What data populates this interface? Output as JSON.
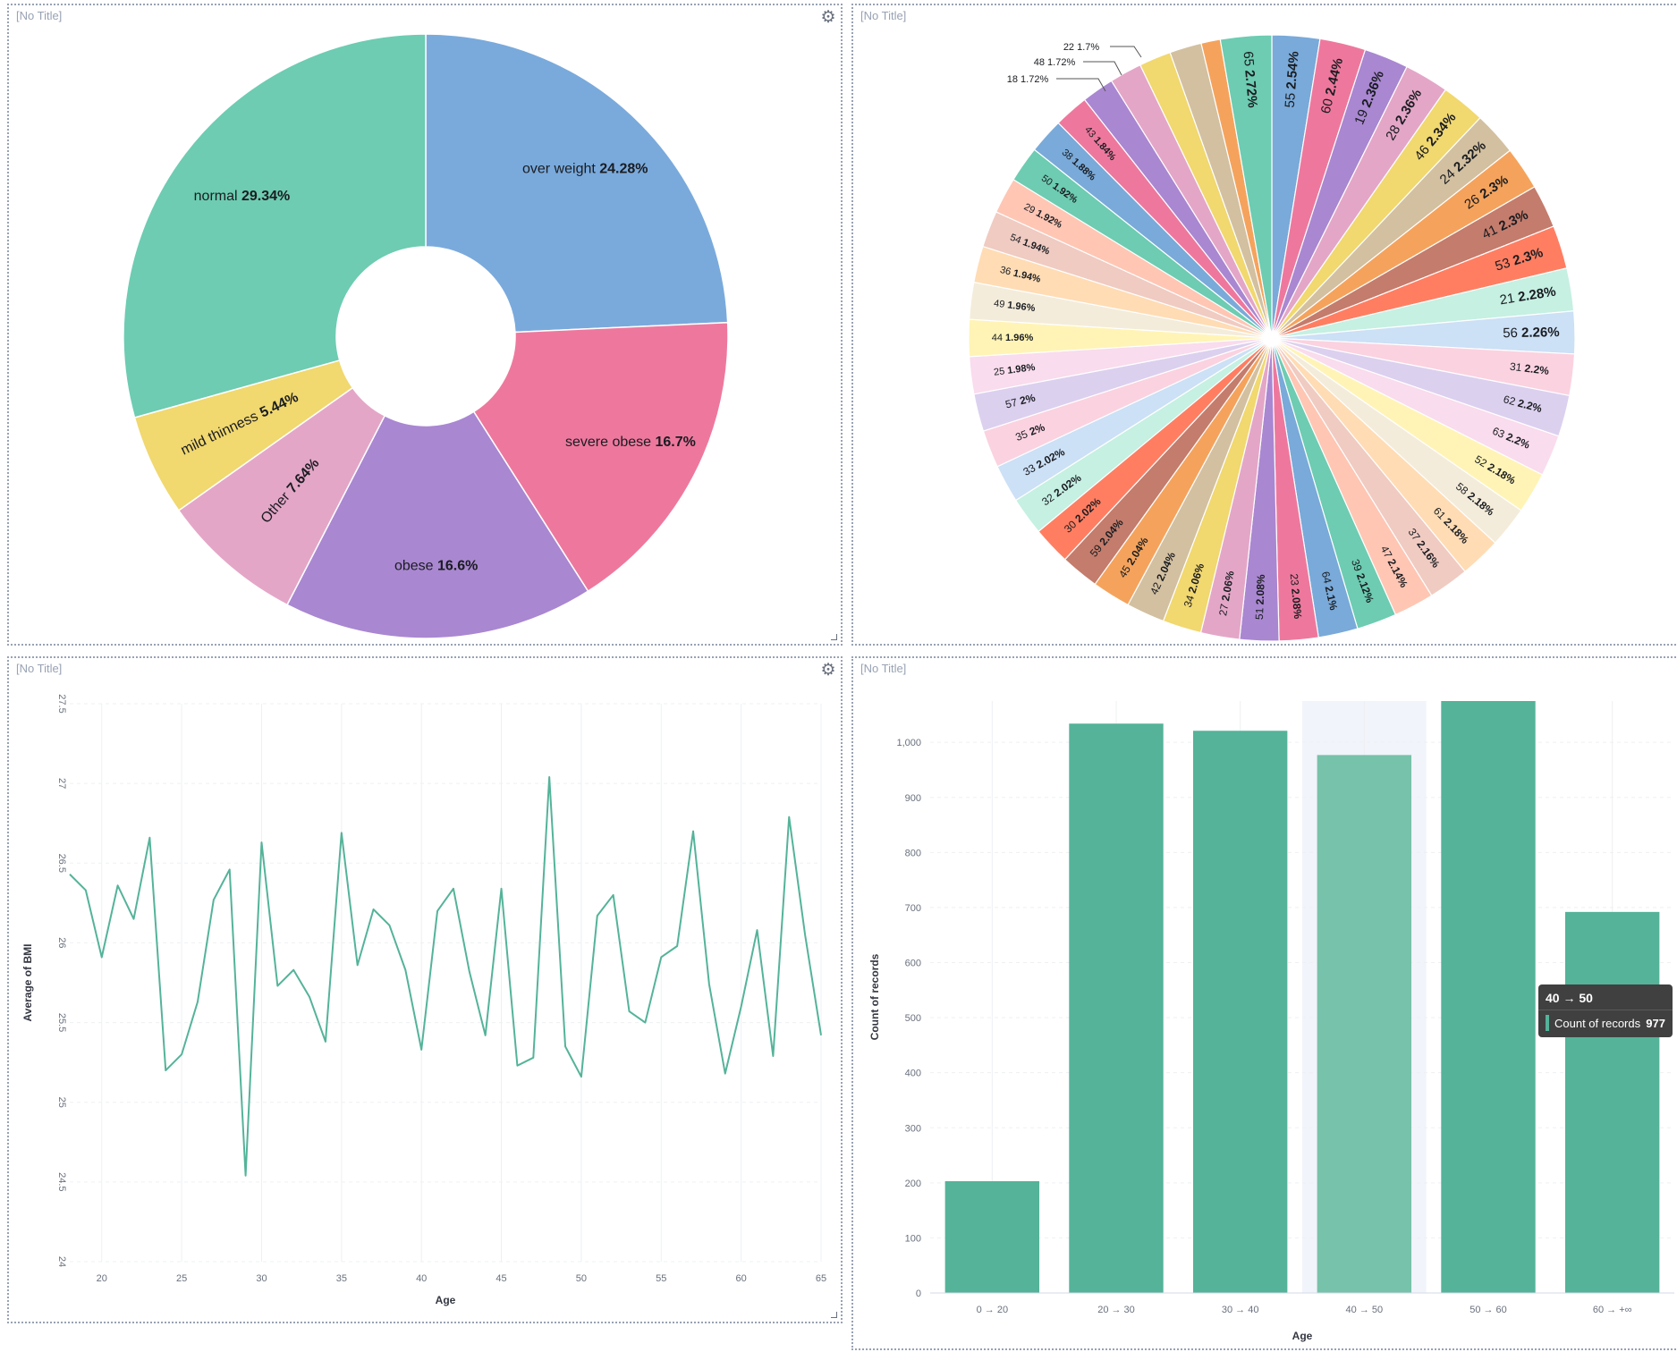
{
  "panels": [
    {
      "title": "[No Title]"
    },
    {
      "title": "[No Title]"
    },
    {
      "title": "[No Title]"
    },
    {
      "title": "[No Title]"
    }
  ],
  "icons": {
    "gear": "gear-icon",
    "resize": "resize-handle-icon"
  },
  "chart_data": [
    {
      "type": "pie",
      "donut": true,
      "slices": [
        {
          "label": "over weight",
          "pct": "24.28%",
          "value": 24.28,
          "color": "#7aaadc"
        },
        {
          "label": "severe obese",
          "pct": "16.7%",
          "value": 16.7,
          "color": "#ee789d"
        },
        {
          "label": "obese",
          "pct": "16.6%",
          "value": 16.6,
          "color": "#a987d1"
        },
        {
          "label": "Other",
          "pct": "7.64%",
          "value": 7.64,
          "color": "#e4a6c7"
        },
        {
          "label": "mild thinness",
          "pct": "5.44%",
          "value": 5.44,
          "color": "#f1d86f"
        },
        {
          "label": "normal",
          "pct": "29.34%",
          "value": 29.34,
          "color": "#6dccb1"
        }
      ]
    },
    {
      "type": "pie",
      "donut": false,
      "slices": [
        {
          "label": "55",
          "pct": "2.54%",
          "value": 2.54,
          "color": "#79aad9"
        },
        {
          "label": "60",
          "pct": "2.44%",
          "value": 2.44,
          "color": "#ee789d"
        },
        {
          "label": "19",
          "pct": "2.36%",
          "value": 2.36,
          "color": "#a987d1"
        },
        {
          "label": "28",
          "pct": "2.36%",
          "value": 2.36,
          "color": "#e4a6c7"
        },
        {
          "label": "46",
          "pct": "2.34%",
          "value": 2.34,
          "color": "#f1d86f"
        },
        {
          "label": "24",
          "pct": "2.32%",
          "value": 2.32,
          "color": "#d2c0a0"
        },
        {
          "label": "26",
          "pct": "2.3%",
          "value": 2.3,
          "color": "#f5a35c"
        },
        {
          "label": "41",
          "pct": "2.3%",
          "value": 2.3,
          "color": "#c47c6c"
        },
        {
          "label": "53",
          "pct": "2.3%",
          "value": 2.3,
          "color": "#ff7e62"
        },
        {
          "label": "21",
          "pct": "2.28%",
          "value": 2.28,
          "color": "#c5f0e2"
        },
        {
          "label": "56",
          "pct": "2.26%",
          "value": 2.26,
          "color": "#cce0f6"
        },
        {
          "label": "31",
          "pct": "2.2%",
          "value": 2.2,
          "color": "#fbd2e0"
        },
        {
          "label": "62",
          "pct": "2.2%",
          "value": 2.2,
          "color": "#dcd0ef"
        },
        {
          "label": "63",
          "pct": "2.2%",
          "value": 2.2,
          "color": "#f9dced"
        },
        {
          "label": "52",
          "pct": "2.18%",
          "value": 2.18,
          "color": "#fff4b6"
        },
        {
          "label": "58",
          "pct": "2.18%",
          "value": 2.18,
          "color": "#f4ecda"
        },
        {
          "label": "61",
          "pct": "2.18%",
          "value": 2.18,
          "color": "#ffdcb4"
        },
        {
          "label": "37",
          "pct": "2.16%",
          "value": 2.16,
          "color": "#f0cbc2"
        },
        {
          "label": "47",
          "pct": "2.14%",
          "value": 2.14,
          "color": "#ffc6b4"
        },
        {
          "label": "39",
          "pct": "2.12%",
          "value": 2.12,
          "color": "#6dccb1"
        },
        {
          "label": "64",
          "pct": "2.1%",
          "value": 2.1,
          "color": "#79aad9"
        },
        {
          "label": "23",
          "pct": "2.08%",
          "value": 2.08,
          "color": "#ee789d"
        },
        {
          "label": "51",
          "pct": "2.08%",
          "value": 2.08,
          "color": "#a987d1"
        },
        {
          "label": "27",
          "pct": "2.06%",
          "value": 2.06,
          "color": "#e4a6c7"
        },
        {
          "label": "34",
          "pct": "2.06%",
          "value": 2.06,
          "color": "#f1d86f"
        },
        {
          "label": "42",
          "pct": "2.04%",
          "value": 2.04,
          "color": "#d2c0a0"
        },
        {
          "label": "45",
          "pct": "2.04%",
          "value": 2.04,
          "color": "#f5a35c"
        },
        {
          "label": "59",
          "pct": "2.04%",
          "value": 2.04,
          "color": "#c47c6c"
        },
        {
          "label": "30",
          "pct": "2.02%",
          "value": 2.02,
          "color": "#ff7e62"
        },
        {
          "label": "32",
          "pct": "2.02%",
          "value": 2.02,
          "color": "#c5f0e2"
        },
        {
          "label": "33",
          "pct": "2.02%",
          "value": 2.02,
          "color": "#cce0f6"
        },
        {
          "label": "35",
          "pct": "2%",
          "value": 2.0,
          "color": "#fbd2e0"
        },
        {
          "label": "57",
          "pct": "2%",
          "value": 2.0,
          "color": "#dcd0ef"
        },
        {
          "label": "25",
          "pct": "1.98%",
          "value": 1.98,
          "color": "#f9dced"
        },
        {
          "label": "44",
          "pct": "1.96%",
          "value": 1.96,
          "color": "#fff4b6"
        },
        {
          "label": "49",
          "pct": "1.96%",
          "value": 1.96,
          "color": "#f4ecda"
        },
        {
          "label": "36",
          "pct": "1.94%",
          "value": 1.94,
          "color": "#ffdcb4"
        },
        {
          "label": "54",
          "pct": "1.94%",
          "value": 1.94,
          "color": "#f0cbc2"
        },
        {
          "label": "29",
          "pct": "1.92%",
          "value": 1.92,
          "color": "#ffc6b4"
        },
        {
          "label": "50",
          "pct": "1.92%",
          "value": 1.92,
          "color": "#6dccb1"
        },
        {
          "label": "38",
          "pct": "1.88%",
          "value": 1.88,
          "color": "#79aad9"
        },
        {
          "label": "43",
          "pct": "1.84%",
          "value": 1.84,
          "color": "#ee789d"
        },
        {
          "label": "18",
          "pct": "1.72%",
          "value": 1.72,
          "color": "#a987d1"
        },
        {
          "label": "48",
          "pct": "1.72%",
          "value": 1.72,
          "color": "#e4a6c7"
        },
        {
          "label": "22",
          "pct": "1.7%",
          "value": 1.7,
          "color": "#f1d86f"
        },
        {
          "label": "",
          "pct": "",
          "value": 1.7,
          "color": "#d2c0a0"
        },
        {
          "label": "",
          "pct": "",
          "value": 1.02,
          "color": "#f5a35c"
        },
        {
          "label": "65",
          "pct": "2.72%",
          "value": 2.72,
          "color": "#6dccb1"
        }
      ]
    },
    {
      "type": "line",
      "xlabel": "Age",
      "ylabel": "Average of BMI",
      "ylim": [
        24,
        27.5
      ],
      "xlim": [
        18,
        65
      ],
      "yticks": [
        "24",
        "24.5",
        "25",
        "25.5",
        "26",
        "26.5",
        "27",
        "27.5"
      ],
      "xticks": [
        "20",
        "25",
        "30",
        "35",
        "40",
        "45",
        "50",
        "55",
        "60",
        "65"
      ],
      "color": "#54b399",
      "x": [
        18,
        19,
        20,
        21,
        22,
        23,
        24,
        25,
        26,
        27,
        28,
        29,
        30,
        31,
        32,
        33,
        34,
        35,
        36,
        37,
        38,
        39,
        40,
        41,
        42,
        43,
        44,
        45,
        46,
        47,
        48,
        49,
        50,
        51,
        52,
        53,
        54,
        55,
        56,
        57,
        58,
        59,
        60,
        61,
        62,
        63,
        64,
        65
      ],
      "y": [
        26.43,
        26.33,
        25.91,
        26.36,
        26.15,
        26.66,
        25.2,
        25.3,
        25.63,
        26.27,
        26.46,
        24.54,
        26.63,
        25.73,
        25.83,
        25.66,
        25.38,
        26.69,
        25.86,
        26.21,
        26.11,
        25.83,
        25.33,
        26.2,
        26.34,
        25.82,
        25.42,
        26.34,
        25.23,
        25.28,
        27.04,
        25.35,
        25.16,
        26.17,
        26.3,
        25.57,
        25.5,
        25.91,
        25.98,
        26.7,
        25.74,
        25.18,
        25.6,
        26.08,
        25.29,
        26.79,
        26.05,
        25.42
      ]
    },
    {
      "type": "bar",
      "xlabel": "Age",
      "ylabel": "Count of records",
      "ylim": [
        0,
        1075
      ],
      "yticks": [
        "0",
        "100",
        "200",
        "300",
        "400",
        "500",
        "600",
        "700",
        "800",
        "900",
        "1,000"
      ],
      "categories": [
        "0 → 20",
        "20 → 30",
        "30 → 40",
        "40 → 50",
        "50 → 60",
        "60 → +∞"
      ],
      "values": [
        203,
        1034,
        1021,
        977,
        1075,
        692
      ],
      "highlighted": "40 → 50",
      "color": "#54b399",
      "highlight_color": "#77c2aa"
    }
  ],
  "tooltip": {
    "title": "40 → 50",
    "label": "Count of records",
    "value": "977"
  }
}
